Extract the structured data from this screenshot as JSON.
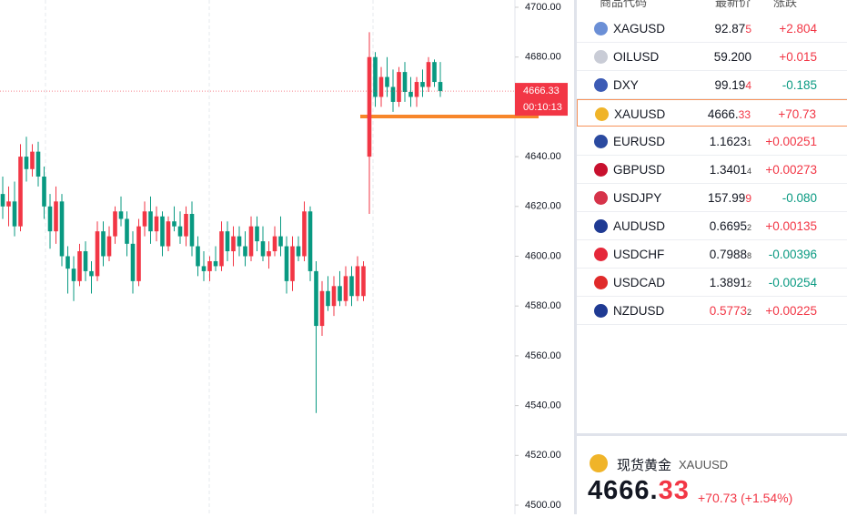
{
  "chart_data": {
    "type": "candlestick",
    "up_color": "#f23645",
    "down_color": "#089981",
    "ylim": [
      4500,
      4700
    ],
    "yticks": [
      {
        "value": 4700,
        "label": "4700.00"
      },
      {
        "value": 4680,
        "label": "4680.00"
      },
      {
        "value": 4660,
        "label": "4660.00"
      },
      {
        "value": 4640,
        "label": "4640.00"
      },
      {
        "value": 4620,
        "label": "4620.00"
      },
      {
        "value": 4600,
        "label": "4600.00"
      },
      {
        "value": 4580,
        "label": "4580.00"
      },
      {
        "value": 4560,
        "label": "4560.00"
      },
      {
        "value": 4540,
        "label": "4540.00"
      },
      {
        "value": 4520,
        "label": "4520.00"
      },
      {
        "value": 4500,
        "label": "4500.00"
      }
    ],
    "last_price": {
      "value": 4666.33,
      "label": "4666.33"
    },
    "countdown": "00:10:13",
    "candles": [
      [
        4625,
        4632,
        4615,
        4620
      ],
      [
        4620,
        4628,
        4612,
        4622
      ],
      [
        4622,
        4630,
        4608,
        4612
      ],
      [
        4612,
        4645,
        4610,
        4640
      ],
      [
        4640,
        4648,
        4630,
        4635
      ],
      [
        4635,
        4645,
        4632,
        4642
      ],
      [
        4642,
        4646,
        4628,
        4632
      ],
      [
        4632,
        4636,
        4615,
        4620
      ],
      [
        4620,
        4625,
        4603,
        4610
      ],
      [
        4610,
        4628,
        4605,
        4622
      ],
      [
        4622,
        4625,
        4596,
        4600
      ],
      [
        4600,
        4604,
        4585,
        4595
      ],
      [
        4595,
        4600,
        4582,
        4590
      ],
      [
        4590,
        4605,
        4588,
        4602
      ],
      [
        4602,
        4606,
        4590,
        4594
      ],
      [
        4594,
        4598,
        4585,
        4592
      ],
      [
        4592,
        4614,
        4590,
        4610
      ],
      [
        4610,
        4614,
        4596,
        4600
      ],
      [
        4600,
        4612,
        4598,
        4608
      ],
      [
        4608,
        4620,
        4605,
        4618
      ],
      [
        4618,
        4624,
        4612,
        4615
      ],
      [
        4615,
        4618,
        4600,
        4605
      ],
      [
        4605,
        4610,
        4585,
        4590
      ],
      [
        4590,
        4615,
        4588,
        4612
      ],
      [
        4612,
        4622,
        4608,
        4618
      ],
      [
        4618,
        4624,
        4605,
        4610
      ],
      [
        4610,
        4620,
        4606,
        4616
      ],
      [
        4616,
        4618,
        4600,
        4604
      ],
      [
        4604,
        4616,
        4602,
        4614
      ],
      [
        4614,
        4620,
        4610,
        4612
      ],
      [
        4612,
        4618,
        4605,
        4608
      ],
      [
        4608,
        4620,
        4604,
        4617
      ],
      [
        4617,
        4622,
        4600,
        4604
      ],
      [
        4604,
        4608,
        4592,
        4596
      ],
      [
        4596,
        4602,
        4590,
        4594
      ],
      [
        4594,
        4600,
        4590,
        4598
      ],
      [
        4598,
        4604,
        4594,
        4596
      ],
      [
        4596,
        4614,
        4594,
        4610
      ],
      [
        4610,
        4614,
        4598,
        4602
      ],
      [
        4602,
        4612,
        4596,
        4608
      ],
      [
        4608,
        4612,
        4600,
        4604
      ],
      [
        4604,
        4610,
        4596,
        4600
      ],
      [
        4600,
        4616,
        4598,
        4612
      ],
      [
        4612,
        4616,
        4602,
        4606
      ],
      [
        4606,
        4612,
        4598,
        4600
      ],
      [
        4600,
        4606,
        4595,
        4602
      ],
      [
        4602,
        4612,
        4600,
        4608
      ],
      [
        4608,
        4616,
        4600,
        4604
      ],
      [
        4604,
        4608,
        4585,
        4590
      ],
      [
        4590,
        4608,
        4586,
        4604
      ],
      [
        4604,
        4608,
        4598,
        4600
      ],
      [
        4600,
        4622,
        4598,
        4618
      ],
      [
        4618,
        4620,
        4590,
        4594
      ],
      [
        4594,
        4598,
        4537,
        4572
      ],
      [
        4572,
        4590,
        4568,
        4586
      ],
      [
        4586,
        4592,
        4578,
        4580
      ],
      [
        4580,
        4592,
        4576,
        4588
      ],
      [
        4588,
        4594,
        4580,
        4582
      ],
      [
        4582,
        4596,
        4580,
        4592
      ],
      [
        4592,
        4596,
        4580,
        4584
      ],
      [
        4584,
        4600,
        4582,
        4596
      ],
      [
        4584,
        4598,
        4582,
        4596
      ],
      [
        4640,
        4690,
        4617,
        4680
      ],
      [
        4680,
        4682,
        4660,
        4664
      ],
      [
        4664,
        4676,
        4660,
        4672
      ],
      [
        4672,
        4680,
        4664,
        4668
      ],
      [
        4668,
        4675,
        4658,
        4662
      ],
      [
        4662,
        4676,
        4660,
        4674
      ],
      [
        4674,
        4678,
        4662,
        4666
      ],
      [
        4666,
        4672,
        4660,
        4664
      ],
      [
        4664,
        4672,
        4660,
        4670
      ],
      [
        4670,
        4675,
        4664,
        4668
      ],
      [
        4668,
        4680,
        4666,
        4678
      ],
      [
        4678,
        4679,
        4668,
        4670
      ],
      [
        4670,
        4678,
        4664,
        4666.33
      ]
    ]
  },
  "watchlist": {
    "headers": [
      "商品代码",
      "最新价",
      "涨跌"
    ],
    "rows": [
      {
        "symbol": "XAGUSD",
        "price": "92.87",
        "price_tail": "5",
        "change": "+2.804",
        "trend": "up",
        "icon": "#6b8fd6"
      },
      {
        "symbol": "OILUSD",
        "price": "59.200",
        "change": "+0.015",
        "trend": "up",
        "icon": "#c9ccd6"
      },
      {
        "symbol": "DXY",
        "price": "99.19",
        "price_tail": "4",
        "change": "-0.185",
        "trend": "down",
        "icon": "#3c5bb5"
      },
      {
        "symbol": "XAUUSD",
        "price": "4666.",
        "price_tail": "33",
        "change": "+70.73",
        "trend": "up",
        "icon": "#f0b429"
      },
      {
        "symbol": "EURUSD",
        "price": "1.1623",
        "price_tail": "1",
        "change": "+0.00251",
        "trend": "up",
        "icon": "#2b4aa0"
      },
      {
        "symbol": "GBPUSD",
        "price": "1.3401",
        "price_tail": "4",
        "change": "+0.00273",
        "trend": "up",
        "icon": "#c8102e"
      },
      {
        "symbol": "USDJPY",
        "price": "157.99",
        "price_tail": "9",
        "change": "-0.080",
        "trend": "down",
        "icon": "#d6334a"
      },
      {
        "symbol": "AUDUSD",
        "price": "0.6695",
        "price_tail": "2",
        "change": "+0.00135",
        "trend": "up",
        "icon": "#1f3a93"
      },
      {
        "symbol": "USDCHF",
        "price": "0.7988",
        "price_tail": "8",
        "change": "-0.00396",
        "trend": "down",
        "icon": "#e5283a"
      },
      {
        "symbol": "USDCAD",
        "price": "1.3891",
        "price_tail": "2",
        "change": "-0.00254",
        "trend": "down",
        "icon": "#e02a2a"
      },
      {
        "symbol": "NZDUSD",
        "price": "0.5773",
        "price_tail": "2",
        "change": "+0.00225",
        "trend": "up",
        "icon": "#1f3a93",
        "price_red": true
      }
    ]
  },
  "detail": {
    "name": "现货黄金",
    "symbol": "XAUUSD",
    "price": "4666.",
    "price_tail": "33",
    "change": "+70.73 (+1.54%)"
  }
}
